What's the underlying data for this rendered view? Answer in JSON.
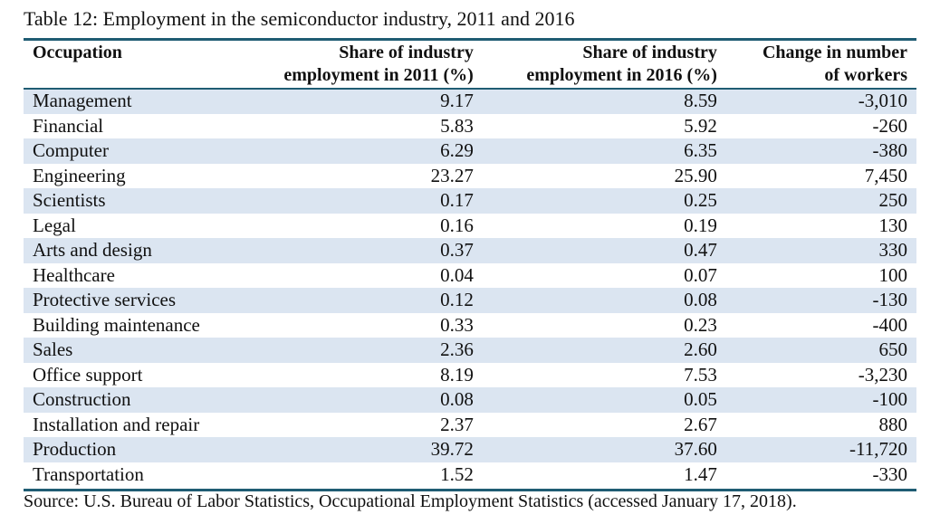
{
  "title": "Table 12: Employment in the semiconductor industry, 2011 and 2016",
  "table": {
    "headers": [
      [
        "Occupation"
      ],
      [
        "Share of industry",
        "employment in 2011 (%)"
      ],
      [
        "Share of industry",
        "employment in 2016 (%)"
      ],
      [
        "Change in number",
        "of workers"
      ]
    ],
    "rows": [
      [
        "Management",
        "9.17",
        "8.59",
        "-3,010"
      ],
      [
        "Financial",
        "5.83",
        "5.92",
        "-260"
      ],
      [
        "Computer",
        "6.29",
        "6.35",
        "-380"
      ],
      [
        "Engineering",
        "23.27",
        "25.90",
        "7,450"
      ],
      [
        "Scientists",
        "0.17",
        "0.25",
        "250"
      ],
      [
        "Legal",
        "0.16",
        "0.19",
        "130"
      ],
      [
        "Arts and design",
        "0.37",
        "0.47",
        "330"
      ],
      [
        "Healthcare",
        "0.04",
        "0.07",
        "100"
      ],
      [
        "Protective services",
        "0.12",
        "0.08",
        "-130"
      ],
      [
        "Building maintenance",
        "0.33",
        "0.23",
        "-400"
      ],
      [
        "Sales",
        "2.36",
        "2.60",
        "650"
      ],
      [
        "Office support",
        "8.19",
        "7.53",
        "-3,230"
      ],
      [
        "Construction",
        "0.08",
        "0.05",
        "-100"
      ],
      [
        "Installation and repair",
        "2.37",
        "2.67",
        "880"
      ],
      [
        "Production",
        "39.72",
        "37.60",
        "-11,720"
      ],
      [
        "Transportation",
        "1.52",
        "1.47",
        "-330"
      ]
    ]
  },
  "source": "Source: U.S. Bureau of Labor Statistics, Occupational Employment Statistics (accessed January 17, 2018)."
}
